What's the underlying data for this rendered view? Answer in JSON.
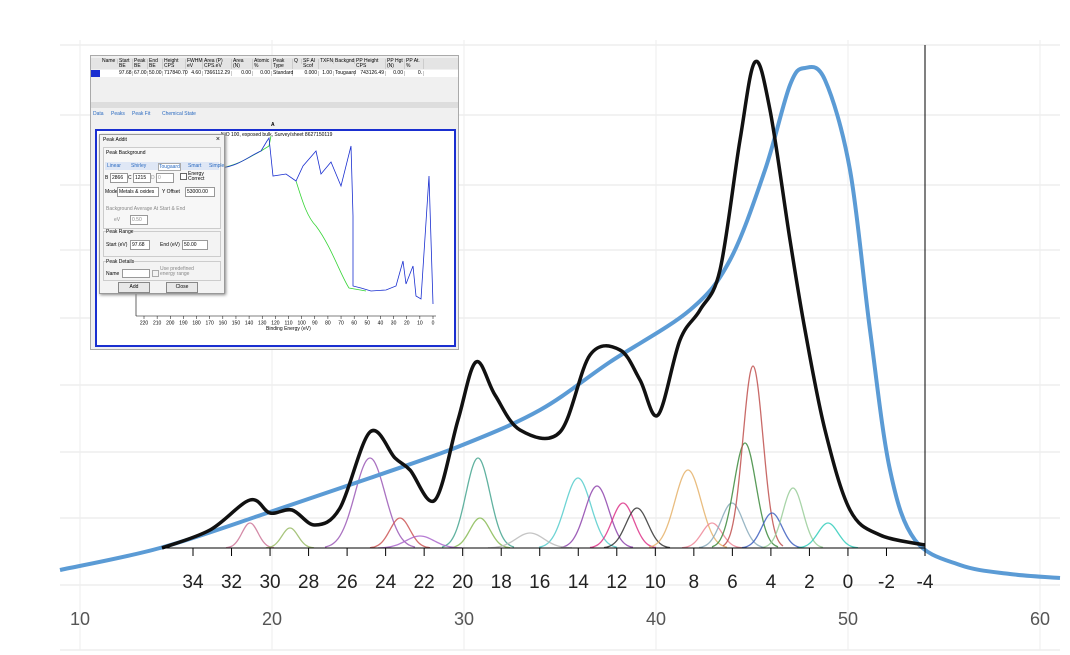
{
  "outer_axis": {
    "ticks": [
      10,
      20,
      30,
      40,
      50,
      60
    ]
  },
  "inner_axis": {
    "ticks": [
      34,
      32,
      30,
      28,
      26,
      24,
      22,
      20,
      18,
      16,
      14,
      12,
      10,
      8,
      6,
      4,
      2,
      0,
      -2,
      -4
    ]
  },
  "inset": {
    "table": {
      "headers": [
        "Name",
        "Start BE",
        "Peak BE",
        "End BE",
        "Height CPS",
        "FWHM eV",
        "Area (P) CPS.eV",
        "Area (N)",
        "Atomic %",
        "Peak Type",
        "Q",
        "SF Al Scof",
        "TXFN",
        "Backgnd",
        "PP Height CPS",
        "PP Hgt (N)",
        "PP At. %"
      ],
      "row": [
        "",
        "97.68",
        "67.00",
        "50.00",
        "717840.70",
        "4.60",
        "7366112.29",
        "0.00",
        "0.00",
        "Standard",
        "",
        "0.000",
        "1.00",
        "Tougaard",
        "743126.49",
        "0.00",
        "0."
      ]
    },
    "tabs": [
      "Data",
      "Peaks",
      "Peak Fit",
      "Chemical State"
    ],
    "panel_label": "A",
    "spectrum_title": "NiO 100, exposed bulk, Survey/sheet 8627150119",
    "spectrum_ticks": [
      220,
      210,
      200,
      190,
      180,
      170,
      160,
      150,
      140,
      130,
      120,
      110,
      100,
      90,
      80,
      70,
      60,
      50,
      40,
      30,
      20,
      10,
      0
    ],
    "spectrum_xlabel": "Binding Energy (eV)",
    "dialog": {
      "title": "Peak Addit",
      "section": "Peak Background",
      "bg_tabs": [
        "Linear",
        "Shirley",
        "Tougaard",
        "Smart",
        "Simple"
      ],
      "b_label": "B",
      "b": "2866",
      "c_label": "C",
      "c": "1215",
      "d_label": "D",
      "d": "0",
      "energy_correct": "Energy Correct",
      "mode_label": "Mode",
      "mode": "Metals & oxides",
      "offset_label": "Y Offset",
      "offset": "53000.00",
      "avg_label": "Background Average At Start & End",
      "ev_label": "eV",
      "ev": "0.50",
      "range_label": "Peak Range",
      "start_label": "Start (eV)",
      "start": "97.68",
      "end_label": "End (eV)",
      "end": "50.00",
      "details_label": "Peak Details",
      "name_label": "Name",
      "predefined": "Use predefined energy range",
      "add": "Add",
      "close": "Close"
    }
  }
}
